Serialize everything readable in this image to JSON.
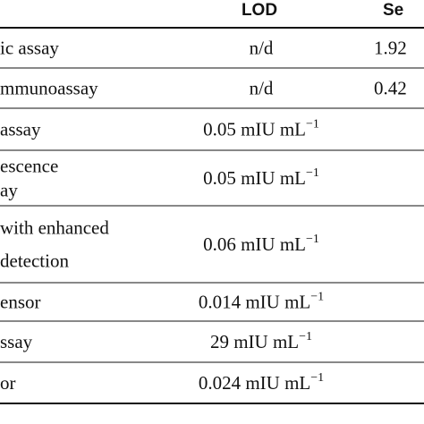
{
  "table": {
    "header": [
      "LOD",
      "Se"
    ],
    "rows": [
      {
        "method": [
          "ic assay"
        ],
        "lod": {
          "text": "n/d"
        },
        "sens": "1.92"
      },
      {
        "method": [
          "mmunoassay"
        ],
        "lod": {
          "text": "n/d"
        },
        "sens": "0.42"
      },
      {
        "method": [
          "assay"
        ],
        "lod": {
          "text": "0.05 mIU mL",
          "sup": "−1"
        }
      },
      {
        "method": [
          "escence",
          "ay"
        ],
        "lod": {
          "text": "0.05 mIU mL",
          "sup": "−1"
        }
      },
      {
        "method": [
          "with enhanced",
          "detection"
        ],
        "lod": {
          "text": "0.06 mIU mL",
          "sup": "−1"
        }
      },
      {
        "method": [
          "ensor"
        ],
        "lod": {
          "text": "0.014 mIU mL",
          "sup": "−1"
        }
      },
      {
        "method": [
          "ssay"
        ],
        "lod": {
          "text": "29 mIU mL",
          "sup": "−1"
        }
      },
      {
        "method": [
          "or"
        ],
        "lod": {
          "text": "0.024 mIU mL",
          "sup": "−1"
        }
      }
    ]
  }
}
